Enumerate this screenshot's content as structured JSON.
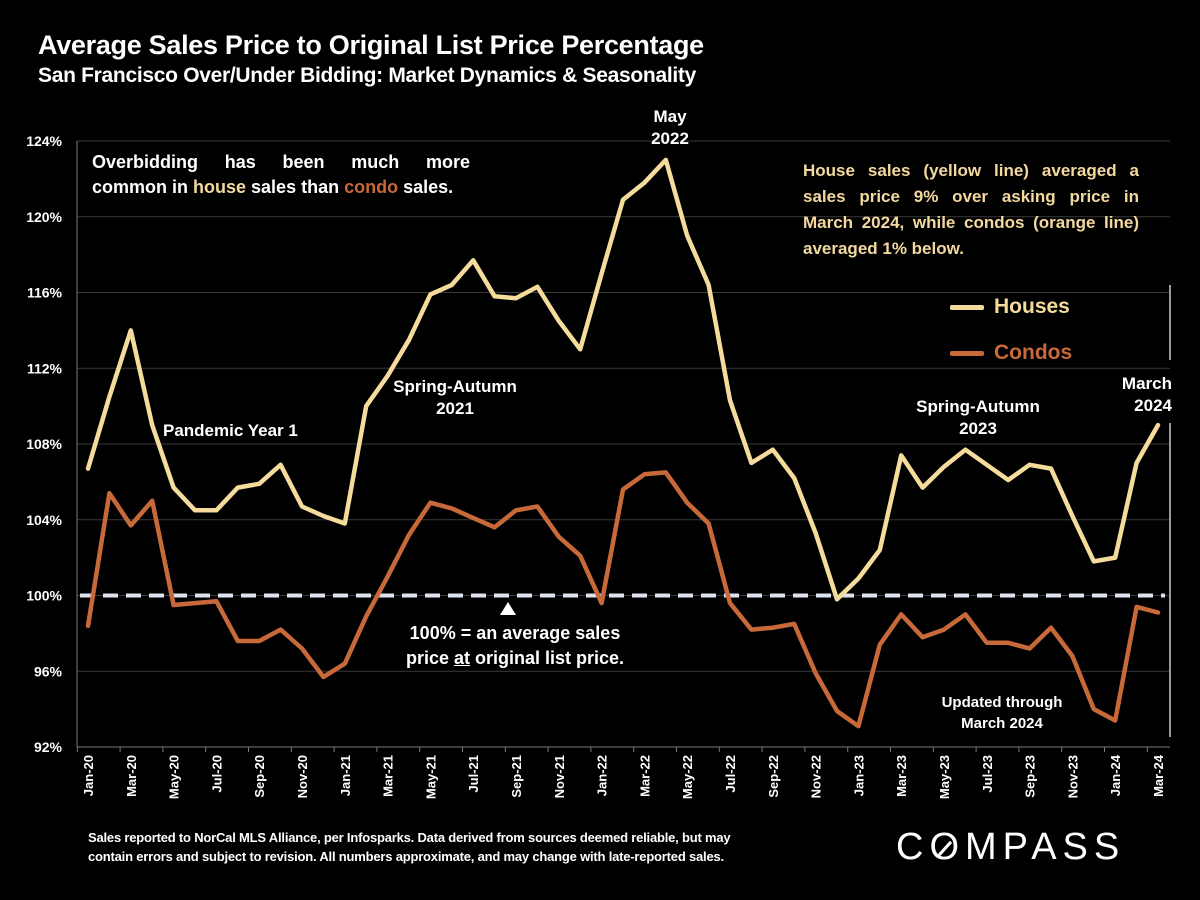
{
  "header": {
    "title": "Average Sales Price to Original List Price Percentage",
    "subtitle": "San Francisco Over/Under Bidding: Market Dynamics & Seasonality"
  },
  "annotations": {
    "left_box": {
      "line1": "Overbidding has been much more",
      "line2_pre": "common in ",
      "line2_house": "house",
      "line2_mid": " sales than ",
      "line2_condo": "condo",
      "line2_post": " sales."
    },
    "right_box": "House sales (yellow line) averaged a sales price 9% over asking price in March 2024, while condos (orange line) averaged 1% below.",
    "pandemic": "Pandemic Year 1",
    "spring_2021_line1": "Spring-Autumn",
    "spring_2021_line2": "2021",
    "may_2022_line1": "May",
    "may_2022_line2": "2022",
    "spring_2023_line1": "Spring-Autumn",
    "spring_2023_line2": "2023",
    "march_2024_line1": "March",
    "march_2024_line2": "2024",
    "baseline_line1": "100% = an average sales",
    "baseline_pre": "price ",
    "baseline_at": "at",
    "baseline_post": " original list price.",
    "updated_line1": "Updated through",
    "updated_line2": "March 2024"
  },
  "legend": {
    "houses": "Houses",
    "condos": "Condos"
  },
  "footnote": {
    "line1": "Sales reported to NorCal MLS Alliance, per Infosparks. Data derived from sources deemed reliable, but may",
    "line2": "contain errors and subject to revision. All numbers approximate, and may change with late-reported sales."
  },
  "logo": {
    "pre": "C",
    "o": "O",
    "post": "MPASS"
  },
  "colors": {
    "houses": "#f6dc9c",
    "condos": "#c8693a",
    "baseline": "#dde3ee",
    "grid": "#3a3a3a",
    "background": "#000000"
  },
  "chart_data": {
    "type": "line",
    "title": "Average Sales Price to Original List Price Percentage",
    "subtitle": "San Francisco Over/Under Bidding: Market Dynamics & Seasonality",
    "xlabel": "",
    "ylabel": "",
    "ylim": [
      92,
      124
    ],
    "yticks": [
      92,
      96,
      100,
      104,
      108,
      112,
      116,
      120,
      124
    ],
    "ytick_labels": [
      "92%",
      "96%",
      "100%",
      "104%",
      "108%",
      "112%",
      "116%",
      "120%",
      "124%"
    ],
    "grid": true,
    "legend_position": "right",
    "reference_line": {
      "value": 100,
      "style": "dashed"
    },
    "x": [
      "Jan-20",
      "Feb-20",
      "Mar-20",
      "Apr-20",
      "May-20",
      "Jun-20",
      "Jul-20",
      "Aug-20",
      "Sep-20",
      "Oct-20",
      "Nov-20",
      "Dec-20",
      "Jan-21",
      "Feb-21",
      "Mar-21",
      "Apr-21",
      "May-21",
      "Jun-21",
      "Jul-21",
      "Aug-21",
      "Sep-21",
      "Oct-21",
      "Nov-21",
      "Dec-21",
      "Jan-22",
      "Feb-22",
      "Mar-22",
      "Apr-22",
      "May-22",
      "Jun-22",
      "Jul-22",
      "Aug-22",
      "Sep-22",
      "Oct-22",
      "Nov-22",
      "Dec-22",
      "Jan-23",
      "Feb-23",
      "Mar-23",
      "Apr-23",
      "May-23",
      "Jun-23",
      "Jul-23",
      "Aug-23",
      "Sep-23",
      "Oct-23",
      "Nov-23",
      "Dec-23",
      "Jan-24",
      "Feb-24",
      "Mar-24"
    ],
    "xtick_labels": [
      "Jan-20",
      "Mar-20",
      "May-20",
      "Jul-20",
      "Sep-20",
      "Nov-20",
      "Jan-21",
      "Mar-21",
      "May-21",
      "Jul-21",
      "Sep-21",
      "Nov-21",
      "Jan-22",
      "Mar-22",
      "May-22",
      "Jul-22",
      "Sep-22",
      "Nov-22",
      "Jan-23",
      "Mar-23",
      "May-23",
      "Jul-23",
      "Sep-23",
      "Nov-23",
      "Jan-24",
      "Mar-24"
    ],
    "series": [
      {
        "name": "Houses",
        "values": [
          106.7,
          110.5,
          114.0,
          109.0,
          105.7,
          104.5,
          104.5,
          105.7,
          105.9,
          106.9,
          104.7,
          104.2,
          103.8,
          110.0,
          111.6,
          113.5,
          115.9,
          116.4,
          117.7,
          115.8,
          115.7,
          116.3,
          114.5,
          113.0,
          117.0,
          120.9,
          121.8,
          123.0,
          119.0,
          116.4,
          110.3,
          107.0,
          107.7,
          106.2,
          103.3,
          99.8,
          100.9,
          102.4,
          107.4,
          105.7,
          106.8,
          107.7,
          106.9,
          106.1,
          106.9,
          106.7,
          104.2,
          101.8,
          102.0,
          107.0,
          109.0
        ]
      },
      {
        "name": "Condos",
        "values": [
          98.4,
          105.4,
          103.7,
          105.0,
          99.5,
          99.6,
          99.7,
          97.6,
          97.6,
          98.2,
          97.2,
          95.7,
          96.4,
          98.9,
          101.0,
          103.2,
          104.9,
          104.6,
          104.1,
          103.6,
          104.5,
          104.7,
          103.1,
          102.1,
          99.6,
          105.6,
          106.4,
          106.5,
          104.9,
          103.8,
          99.6,
          98.2,
          98.3,
          98.5,
          95.9,
          93.9,
          93.1,
          97.4,
          99.0,
          97.8,
          98.2,
          99.0,
          97.5,
          97.5,
          97.2,
          98.3,
          96.8,
          94.0,
          93.4,
          99.4,
          99.1
        ]
      }
    ]
  }
}
